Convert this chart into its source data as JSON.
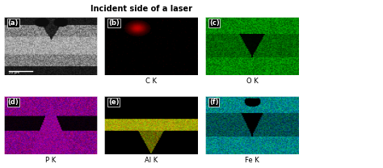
{
  "title": "Incident side of a laser",
  "title_fontsize": 7,
  "panels": [
    "(a)",
    "(b)",
    "(c)",
    "(d)",
    "(e)",
    "(f)"
  ],
  "labels": [
    "",
    "C K",
    "O K",
    "P K",
    "Al K",
    "Fe K"
  ],
  "bg_colors": [
    "#1a1a1a",
    "#000000",
    "#000000",
    "#000000",
    "#000000",
    "#000000"
  ],
  "accent_colors": [
    "#888888",
    "#cc0000",
    "#00cc00",
    "#cc00cc",
    "#cccc00",
    "#00cccc"
  ],
  "label_fontsize": 6,
  "panel_label_fontsize": 6,
  "nrows": 2,
  "ncols": 3,
  "fig_width": 4.74,
  "fig_height": 2.08,
  "dpi": 100
}
